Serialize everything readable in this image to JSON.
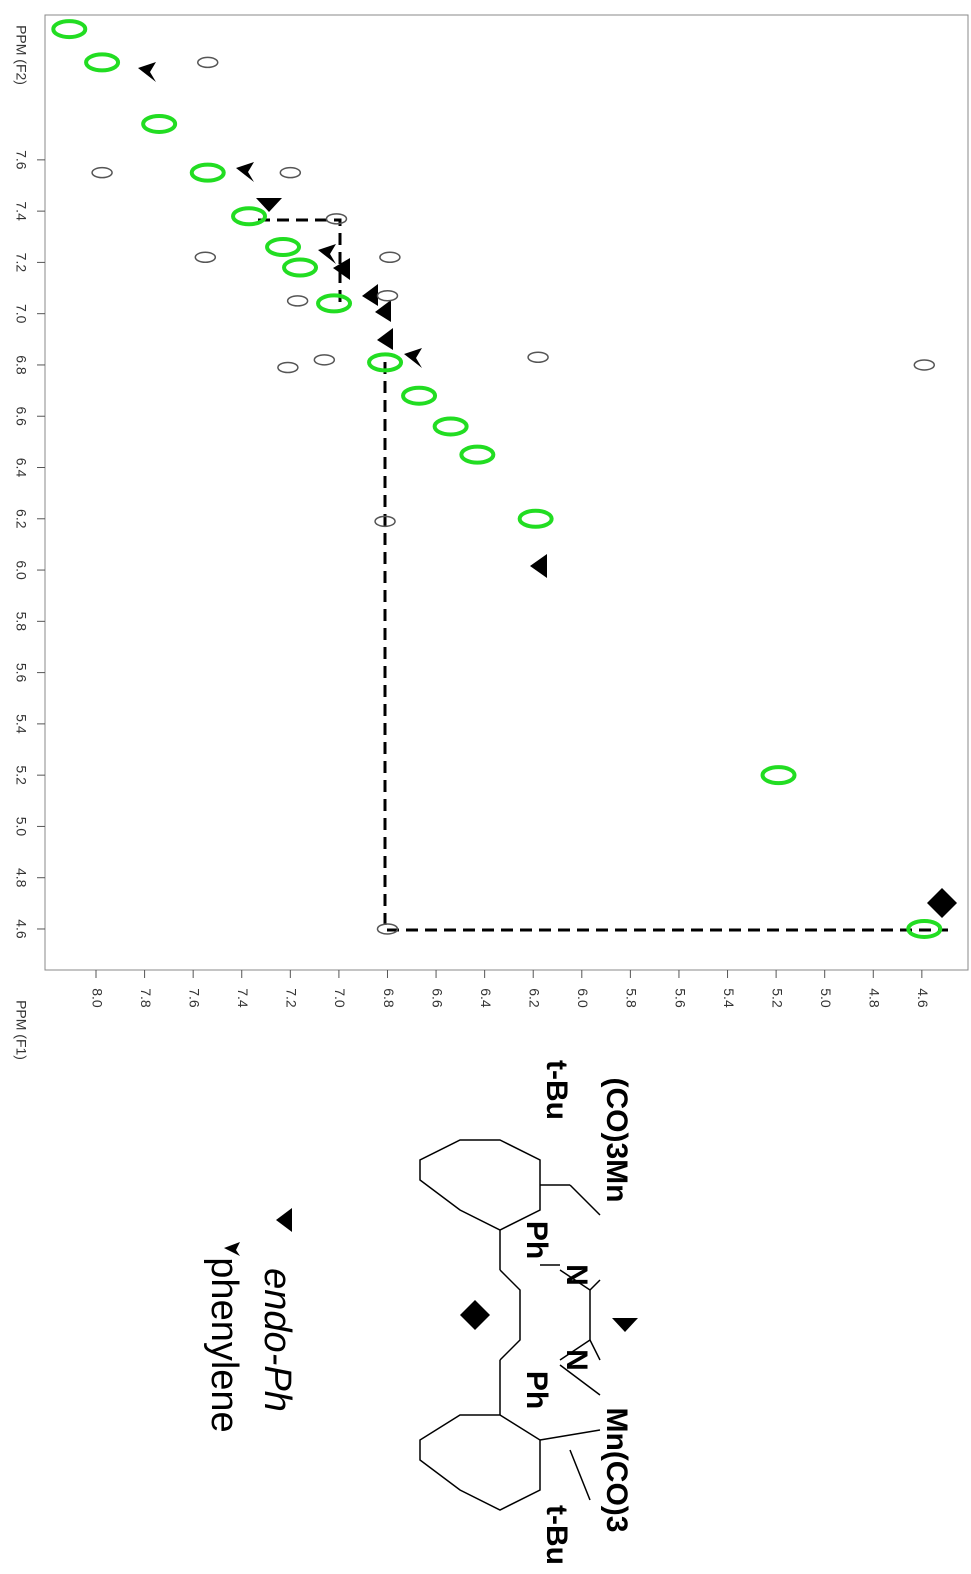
{
  "chart_data": {
    "type": "scatter",
    "x_label": "PPM (F1)",
    "y_label": "PPM (F2)",
    "xlim": [
      8.21,
      4.41
    ],
    "ylim": [
      4.44,
      8.165
    ],
    "xticks": [
      {
        "value": 8.0,
        "label": "8.0"
      },
      7.8,
      7.6,
      7.4,
      7.2,
      {
        "value": 7.0,
        "label": "7.0"
      },
      6.8,
      6.6,
      6.4,
      6.2,
      {
        "value": 6.0,
        "label": "6.0"
      },
      5.8,
      5.6,
      5.4,
      5.2,
      {
        "value": 5.0,
        "label": "5.0"
      },
      4.8,
      4.6
    ],
    "yticks": [
      7.6,
      7.4,
      7.2,
      {
        "value": 7.0,
        "label": "7.0"
      },
      6.8,
      6.6,
      6.4,
      6.2,
      {
        "value": 6.0,
        "label": "6.0"
      },
      5.8,
      5.6,
      5.4,
      5.2,
      {
        "value": 5.0,
        "label": "5.0"
      },
      4.8,
      4.6
    ],
    "series": [
      {
        "color": "#22dd22",
        "x": [
          8.11,
          7.975,
          7.74,
          7.54,
          7.37,
          7.23,
          7.16,
          7.02,
          6.81,
          6.67,
          6.54,
          6.43,
          6.19,
          5.19,
          4.59
        ],
        "values": [
          8.11,
          7.98,
          7.74,
          7.55,
          7.38,
          7.26,
          7.18,
          7.04,
          6.81,
          6.68,
          6.56,
          6.45,
          6.2,
          5.2,
          4.6
        ]
      },
      {
        "color": "#555555",
        "x": [
          7.54,
          7.975,
          7.2,
          7.55,
          7.01,
          6.79,
          6.8,
          7.17,
          7.21,
          7.06,
          6.18,
          4.59,
          6.81,
          6.8
        ],
        "values": [
          7.98,
          7.55,
          7.55,
          7.22,
          7.37,
          7.22,
          7.07,
          7.05,
          6.79,
          6.82,
          6.83,
          6.8,
          6.19,
          4.6
        ]
      }
    ],
    "annotations": [
      "(CO)3Mn",
      "t-Bu",
      "Ph",
      "N",
      "N",
      "Ph",
      "Mn(CO)3",
      "t-Bu"
    ],
    "legend": [
      "endo-Ph",
      "phenylene"
    ]
  }
}
